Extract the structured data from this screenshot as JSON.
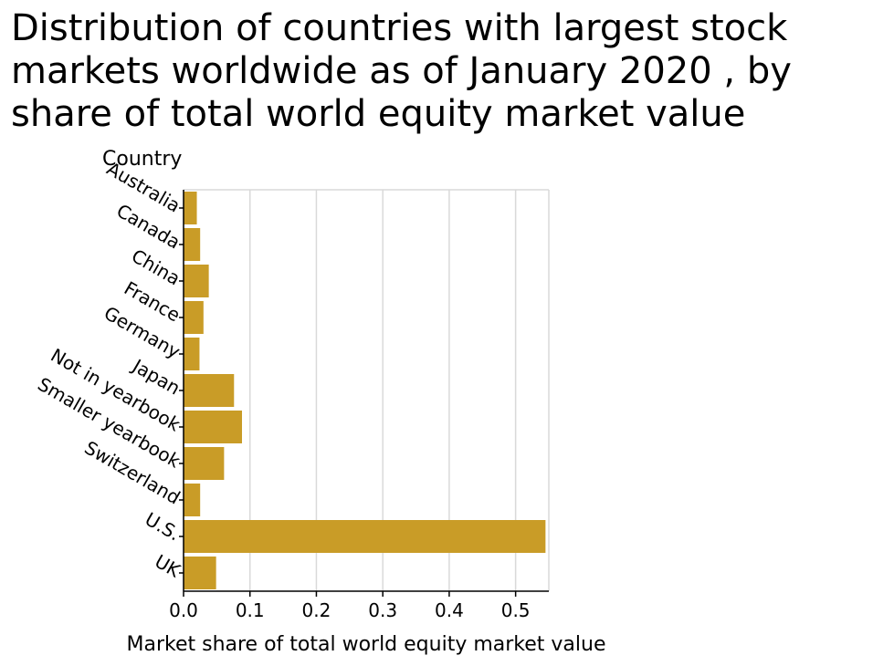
{
  "title_lines": [
    "Distribution of countries with largest stock",
    "markets worldwide as of January 2020 , by",
    "share of total world equity market value"
  ],
  "chart_data": {
    "type": "bar",
    "orientation": "horizontal",
    "title": "Distribution of countries with largest stock markets worldwide as of January 2020 , by share of total world equity market value",
    "ylabel": "Country",
    "xlabel": "Market share of total world equity market value",
    "categories": [
      "Australia",
      "Canada",
      "China",
      "France",
      "Germany",
      "Japan",
      "Not in yearbook",
      "Smaller yearbook",
      "Switzerland",
      "U.S.",
      "UK"
    ],
    "values": [
      0.02,
      0.025,
      0.038,
      0.03,
      0.024,
      0.076,
      0.088,
      0.061,
      0.025,
      0.545,
      0.049
    ],
    "xticks": [
      "0.0",
      "0.1",
      "0.2",
      "0.3",
      "0.4",
      "0.5"
    ],
    "xlim": [
      0,
      0.55
    ],
    "grid": true,
    "bar_color": "#c99c27",
    "grid_color": "#d9d9d9"
  }
}
